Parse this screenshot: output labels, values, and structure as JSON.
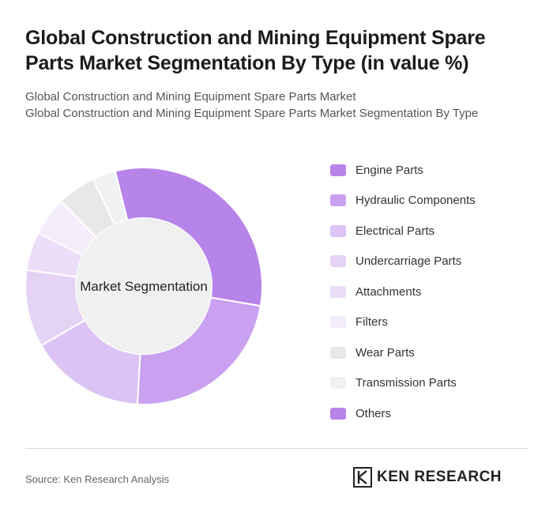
{
  "header": {
    "title": "Global Construction and Mining Equipment Spare Parts Market Segmentation By Type (in value %)",
    "subtitle_line1": "Global Construction and Mining Equipment Spare Parts Market",
    "subtitle_line2": "Global Construction and Mining Equipment Spare Parts Market Segmentation By Type"
  },
  "chart_data": {
    "type": "pie",
    "center_label": "Market Segmentation",
    "categories": [
      "Engine Parts",
      "Hydraulic Components",
      "Electrical Parts",
      "Undercarriage Parts",
      "Attachments",
      "Filters",
      "Wear Parts",
      "Transmission Parts",
      "Others"
    ],
    "values": [
      30,
      22,
      15,
      10,
      5,
      5,
      5,
      3,
      0
    ],
    "colors": [
      "#b784ea",
      "#c9a1f0",
      "#dcc3f5",
      "#e5d3f6",
      "#ecdef8",
      "#f3ecfb",
      "#e8e8e8",
      "#f1f1f1",
      "#b784ea"
    ],
    "legend_position": "right"
  },
  "footer": {
    "source": "Source: Ken Research Analysis",
    "brand": "KEN RESEARCH",
    "brand_icon": "ken-research-logo-icon"
  }
}
